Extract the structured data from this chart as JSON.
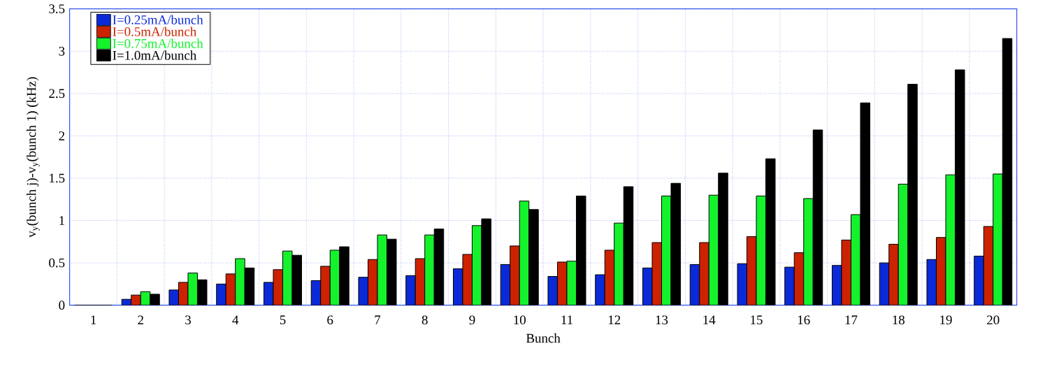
{
  "chart_data": {
    "type": "bar",
    "xlabel": "Bunch",
    "ylabel": "v$_{y}$(bunch j)-v$_{y}$(bunch 1) (kHz)",
    "categories": [
      "1",
      "2",
      "3",
      "4",
      "5",
      "6",
      "7",
      "8",
      "9",
      "10",
      "11",
      "12",
      "13",
      "14",
      "15",
      "16",
      "17",
      "18",
      "19",
      "20"
    ],
    "series": [
      {
        "name": "I=0.25mA/bunch",
        "color": "#0a2ad8",
        "values": [
          0,
          0.07,
          0.18,
          0.25,
          0.27,
          0.29,
          0.33,
          0.35,
          0.43,
          0.48,
          0.34,
          0.36,
          0.44,
          0.48,
          0.49,
          0.45,
          0.47,
          0.5,
          0.54,
          0.58
        ]
      },
      {
        "name": "I=0.5mA/bunch",
        "color": "#cc2200",
        "values": [
          0,
          0.12,
          0.27,
          0.37,
          0.42,
          0.46,
          0.54,
          0.55,
          0.6,
          0.7,
          0.51,
          0.65,
          0.74,
          0.74,
          0.81,
          0.62,
          0.77,
          0.72,
          0.8,
          0.93
        ]
      },
      {
        "name": "I=0.75mA/bunch",
        "color": "#14f22c",
        "values": [
          0,
          0.16,
          0.38,
          0.55,
          0.64,
          0.65,
          0.83,
          0.83,
          0.94,
          1.23,
          0.52,
          0.97,
          1.29,
          1.3,
          1.29,
          1.26,
          1.07,
          1.43,
          1.54,
          1.55
        ]
      },
      {
        "name": "I=1.0mA/bunch",
        "color": "#000000",
        "values": [
          0,
          0.13,
          0.3,
          0.44,
          0.59,
          0.69,
          0.78,
          0.9,
          1.02,
          1.13,
          1.29,
          1.4,
          1.44,
          1.56,
          1.73,
          2.07,
          2.39,
          2.61,
          2.78,
          3.15
        ]
      }
    ],
    "ylim": [
      0,
      3.5
    ],
    "yticks": [
      0,
      0.5,
      1,
      1.5,
      2,
      2.5,
      3,
      3.5
    ],
    "grid": true,
    "legend": "top left"
  }
}
